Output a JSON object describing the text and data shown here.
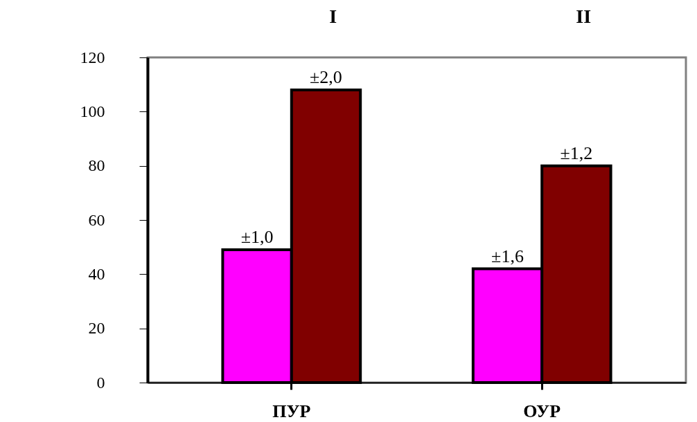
{
  "chart_data": {
    "type": "bar",
    "categories": [
      "ПУР",
      "ОУР"
    ],
    "series": [
      {
        "color": "#ff00ff",
        "values": [
          49,
          42
        ]
      },
      {
        "color": "#800000",
        "values": [
          108,
          80
        ]
      }
    ],
    "ylim": [
      0,
      120
    ],
    "yticks": [
      0,
      20,
      40,
      60,
      80,
      100,
      120
    ],
    "grid": false,
    "annotations": [
      "I",
      "II",
      {
        "text": "±1,0",
        "x": "ПУР",
        "y": 49
      },
      {
        "text": "±2,0",
        "x": "ПУР",
        "y": 108
      },
      {
        "text": "±1,6",
        "x": "ОУР",
        "y": 42
      },
      {
        "text": "±1,2",
        "x": "ОУР",
        "y": 80
      }
    ]
  }
}
